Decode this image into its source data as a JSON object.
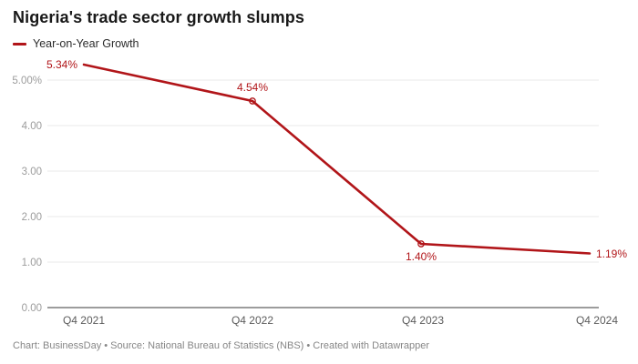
{
  "header": {
    "title": "Nigeria's trade sector growth slumps"
  },
  "legend": {
    "label": "Year-on-Year Growth"
  },
  "footer": {
    "text": "Chart: BusinessDay • Source: National Bureau of Statistics (NBS) • Created with Datawrapper"
  },
  "colors": {
    "line": "#b11519",
    "point_label": "#b11519",
    "grid": "#e9e9e9",
    "baseline": "#9c9c9c",
    "y_tick_label": "#9c9c9c",
    "x_tick_label": "#5c5c5c",
    "title": "#191919",
    "footer": "#868686"
  },
  "chart_data": {
    "type": "line",
    "title": "Nigeria's trade sector growth slumps",
    "categories": [
      "Q4 2021",
      "Q4 2022",
      "Q4 2023",
      "Q4 2024"
    ],
    "series": [
      {
        "name": "Year-on-Year Growth",
        "values": [
          5.34,
          4.54,
          1.4,
          1.19
        ]
      }
    ],
    "point_labels": [
      "5.34%",
      "4.54%",
      "1.40%",
      "1.19%"
    ],
    "y_ticks": [
      {
        "value": 0,
        "label": "0.00"
      },
      {
        "value": 1,
        "label": "1.00"
      },
      {
        "value": 2,
        "label": "2.00"
      },
      {
        "value": 3,
        "label": "3.00"
      },
      {
        "value": 4,
        "label": "4.00"
      },
      {
        "value": 5,
        "label": "5.00%"
      }
    ],
    "ylim": [
      0,
      5.6
    ],
    "xlabel": "",
    "ylabel": "",
    "grid": "horizontal",
    "legend_position": "top-left",
    "markers_on_points": [
      "Q4 2022",
      "Q4 2023"
    ]
  }
}
